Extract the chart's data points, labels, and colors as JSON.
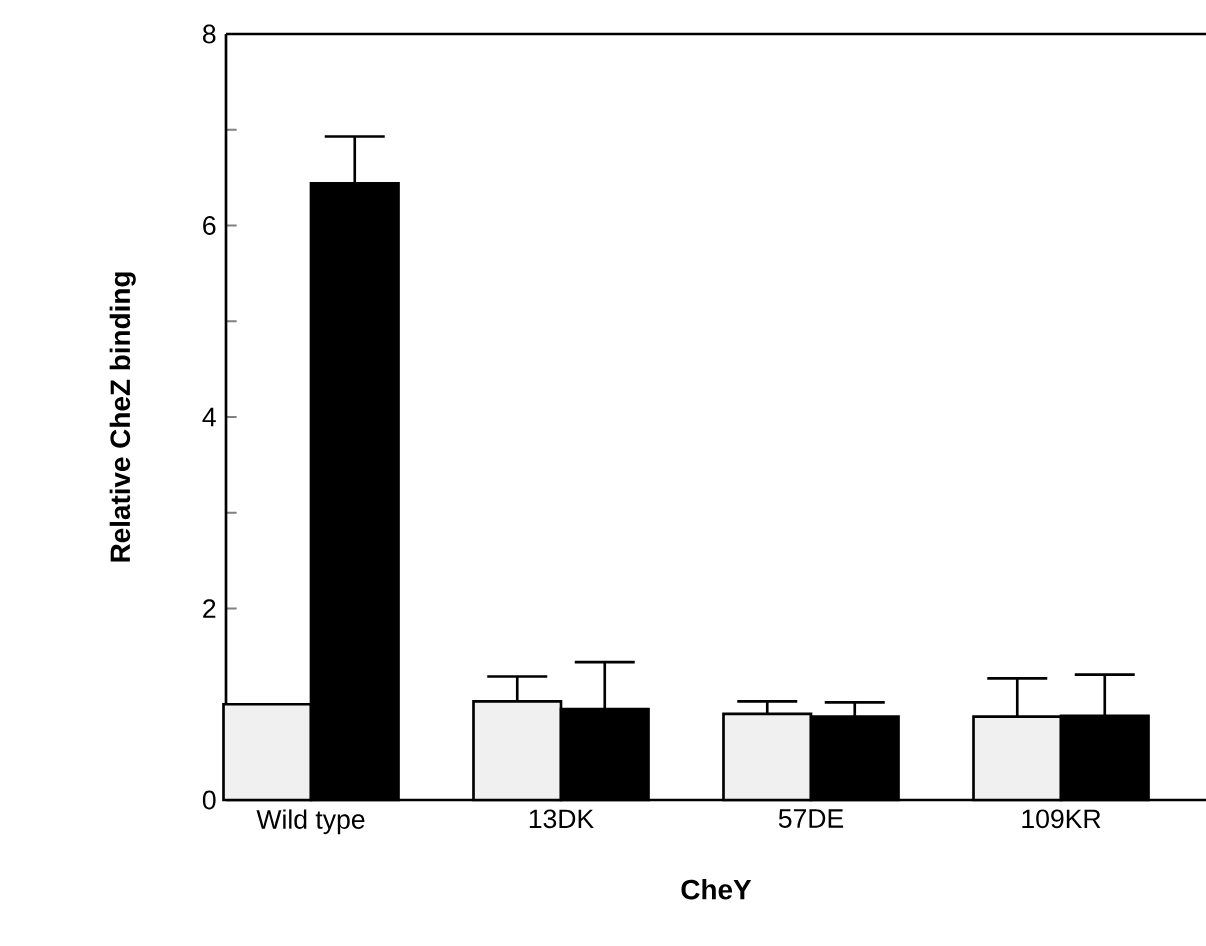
{
  "chart_data": {
    "type": "bar",
    "xlabel": "CheY",
    "ylabel": "Relative CheZ binding",
    "categories": [
      "Wild type",
      "13DK",
      "57DE",
      "109KR"
    ],
    "series": [
      {
        "color": "#f0f0f0",
        "values": [
          1.0,
          1.03,
          0.9,
          0.87
        ],
        "errors": [
          null,
          [
            1.03,
            1.29
          ],
          [
            0.9,
            1.03
          ],
          [
            0.87,
            1.27
          ]
        ]
      },
      {
        "color": "#000000",
        "values": [
          6.44,
          0.95,
          0.87,
          0.88
        ],
        "errors": [
          [
            6.44,
            6.93
          ],
          [
            0.95,
            1.44
          ],
          [
            0.87,
            1.02
          ],
          [
            0.88,
            1.31
          ]
        ]
      }
    ],
    "ylim": [
      0,
      8
    ],
    "yticks": [
      0,
      {
        "value": 1,
        "label": null
      },
      2,
      {
        "value": 3,
        "label": null
      },
      4,
      {
        "value": 5,
        "label": null
      },
      6,
      {
        "value": 7,
        "label": null
      },
      8
    ],
    "grid": false
  }
}
